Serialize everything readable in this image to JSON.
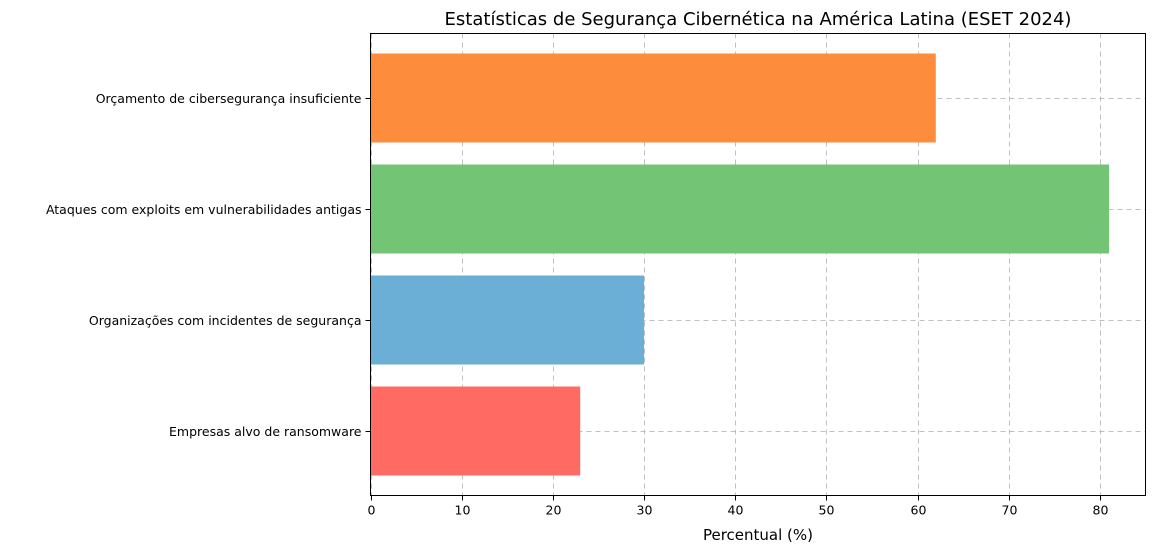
{
  "chart_data": {
    "type": "bar",
    "orientation": "horizontal",
    "title": "Estatísticas de Segurança Cibernética na América Latina (ESET 2024)",
    "xlabel": "Percentual (%)",
    "ylabel": "",
    "xlim": [
      0,
      85
    ],
    "xticks": [
      0,
      10,
      20,
      30,
      40,
      50,
      60,
      70,
      80
    ],
    "grid": true,
    "categories": [
      "Empresas alvo de ransomware",
      "Organizações com incidentes de segurança",
      "Ataques com exploits em vulnerabilidades antigas",
      "Orçamento de cibersegurança insuficiente"
    ],
    "values": [
      23,
      30,
      81,
      62
    ],
    "colors": [
      "#ff6b62",
      "#6baed6",
      "#74c476",
      "#fd8d3c"
    ]
  }
}
